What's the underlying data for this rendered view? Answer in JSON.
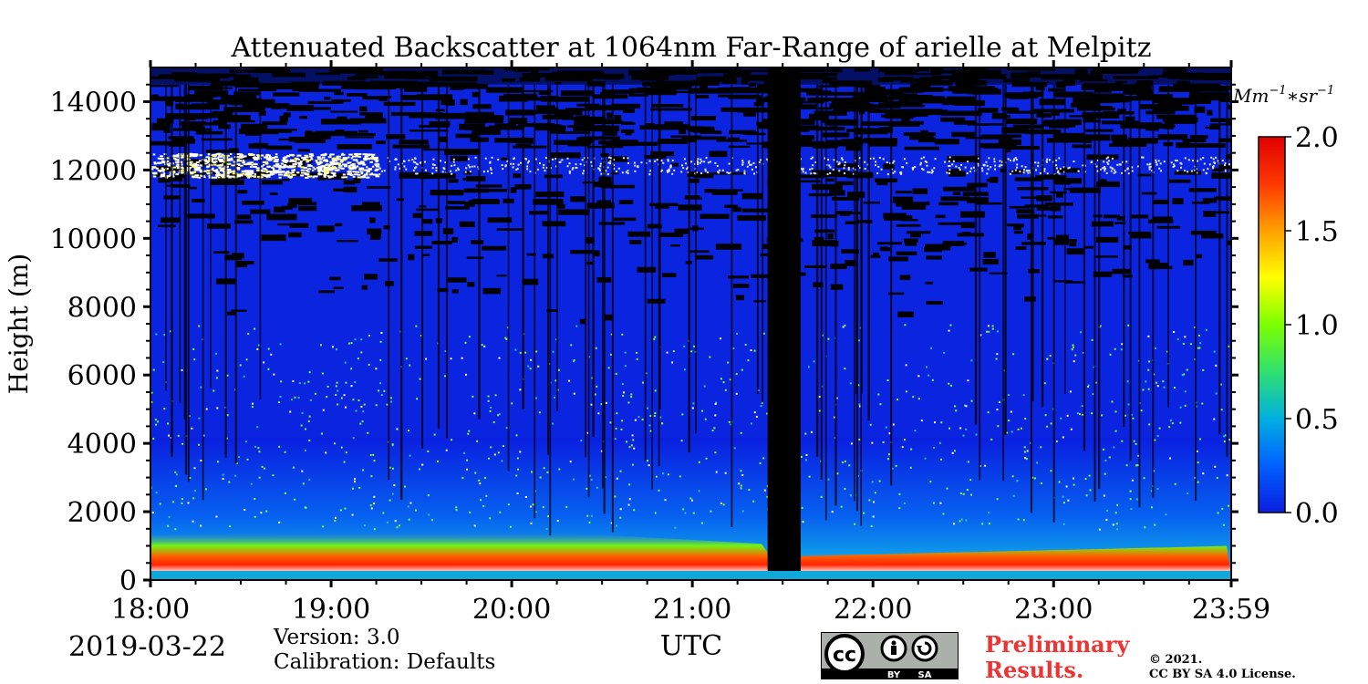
{
  "chart_data": {
    "type": "heatmap",
    "title": "Attenuated Backscatter at 1064nm Far-Range of arielle at Melpitz",
    "xlabel": "UTC",
    "ylabel": "Height (m)",
    "x_ticks": [
      "18:00",
      "19:00",
      "20:00",
      "21:00",
      "22:00",
      "23:00",
      "23:59"
    ],
    "x_range": [
      "18:00",
      "23:59"
    ],
    "y_ticks": [
      0,
      2000,
      4000,
      6000,
      8000,
      10000,
      12000,
      14000
    ],
    "ylim": [
      0,
      15000
    ],
    "data_gap": [
      "21:25",
      "21:36"
    ],
    "features": [
      {
        "layer": "planetary boundary layer aerosol",
        "height_range_m": [
          200,
          1400
        ],
        "peak_value": 2.0
      },
      {
        "layer": "cirrus cloud",
        "height_range_m": [
          11500,
          12500
        ],
        "time_range": [
          "18:00",
          "19:15"
        ],
        "peak_value": 2.0
      }
    ],
    "colorbar": {
      "unit": "Mm^-1*sr^-1",
      "range": [
        0.0,
        2.0
      ],
      "ticks": [
        "0.0",
        "0.5",
        "1.0",
        "1.5",
        "2.0"
      ],
      "colors": [
        "#0a1fe0",
        "#0060ff",
        "#00b0e0",
        "#30e070",
        "#7cff00",
        "#ffff00",
        "#ffa000",
        "#ff3800",
        "#e00000"
      ]
    }
  },
  "footer": {
    "date": "2019-03-22",
    "version": "Version: 3.0",
    "calibration": "Calibration: Defaults",
    "preliminary_1": "Preliminary",
    "preliminary_2": "Results.",
    "license_1": "©  2021.",
    "license_2": "CC BY SA 4.0 License.",
    "cc_badge": {
      "text": "cc",
      "by": "BY",
      "sa": "SA"
    }
  }
}
